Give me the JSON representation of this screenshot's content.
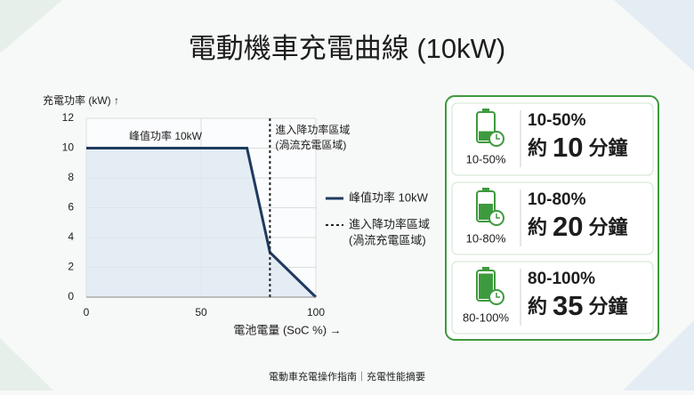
{
  "chart_data": {
    "type": "line",
    "title": "電動機車充電曲線 (10kW)",
    "y_label": "充電功率 (kW) ↑",
    "x_label": "電池電量 (SoC %) →",
    "x": [
      0,
      70,
      80,
      100
    ],
    "series": [
      {
        "name": "峰值功率 10kW",
        "color": "#1f3a5f",
        "values": [
          10,
          10,
          3,
          0
        ]
      }
    ],
    "threshold": {
      "x": 80,
      "label": [
        "進入降功率區域",
        "(渦流充電區域)"
      ]
    },
    "annotation": "峰值功率 10kW",
    "xlim": [
      0,
      100
    ],
    "xticks": [
      0,
      50,
      100
    ],
    "ylim": [
      0,
      12
    ],
    "yticks": [
      0,
      2,
      4,
      6,
      8,
      10,
      12
    ],
    "grid": true
  },
  "panel": {
    "cards": [
      {
        "icon_label": "10-50%",
        "range": "10-50%",
        "prefix": "約",
        "minutes": 10,
        "unit": "分鐘"
      },
      {
        "icon_label": "10-80%",
        "range": "10-80%",
        "prefix": "約",
        "minutes": 20,
        "unit": "分鐘"
      },
      {
        "icon_label": "80-100%",
        "range": "80-100%",
        "prefix": "約",
        "minutes": 35,
        "unit": "分鐘"
      }
    ]
  },
  "footer": "電動車充電操作指南｜充電性能摘要"
}
